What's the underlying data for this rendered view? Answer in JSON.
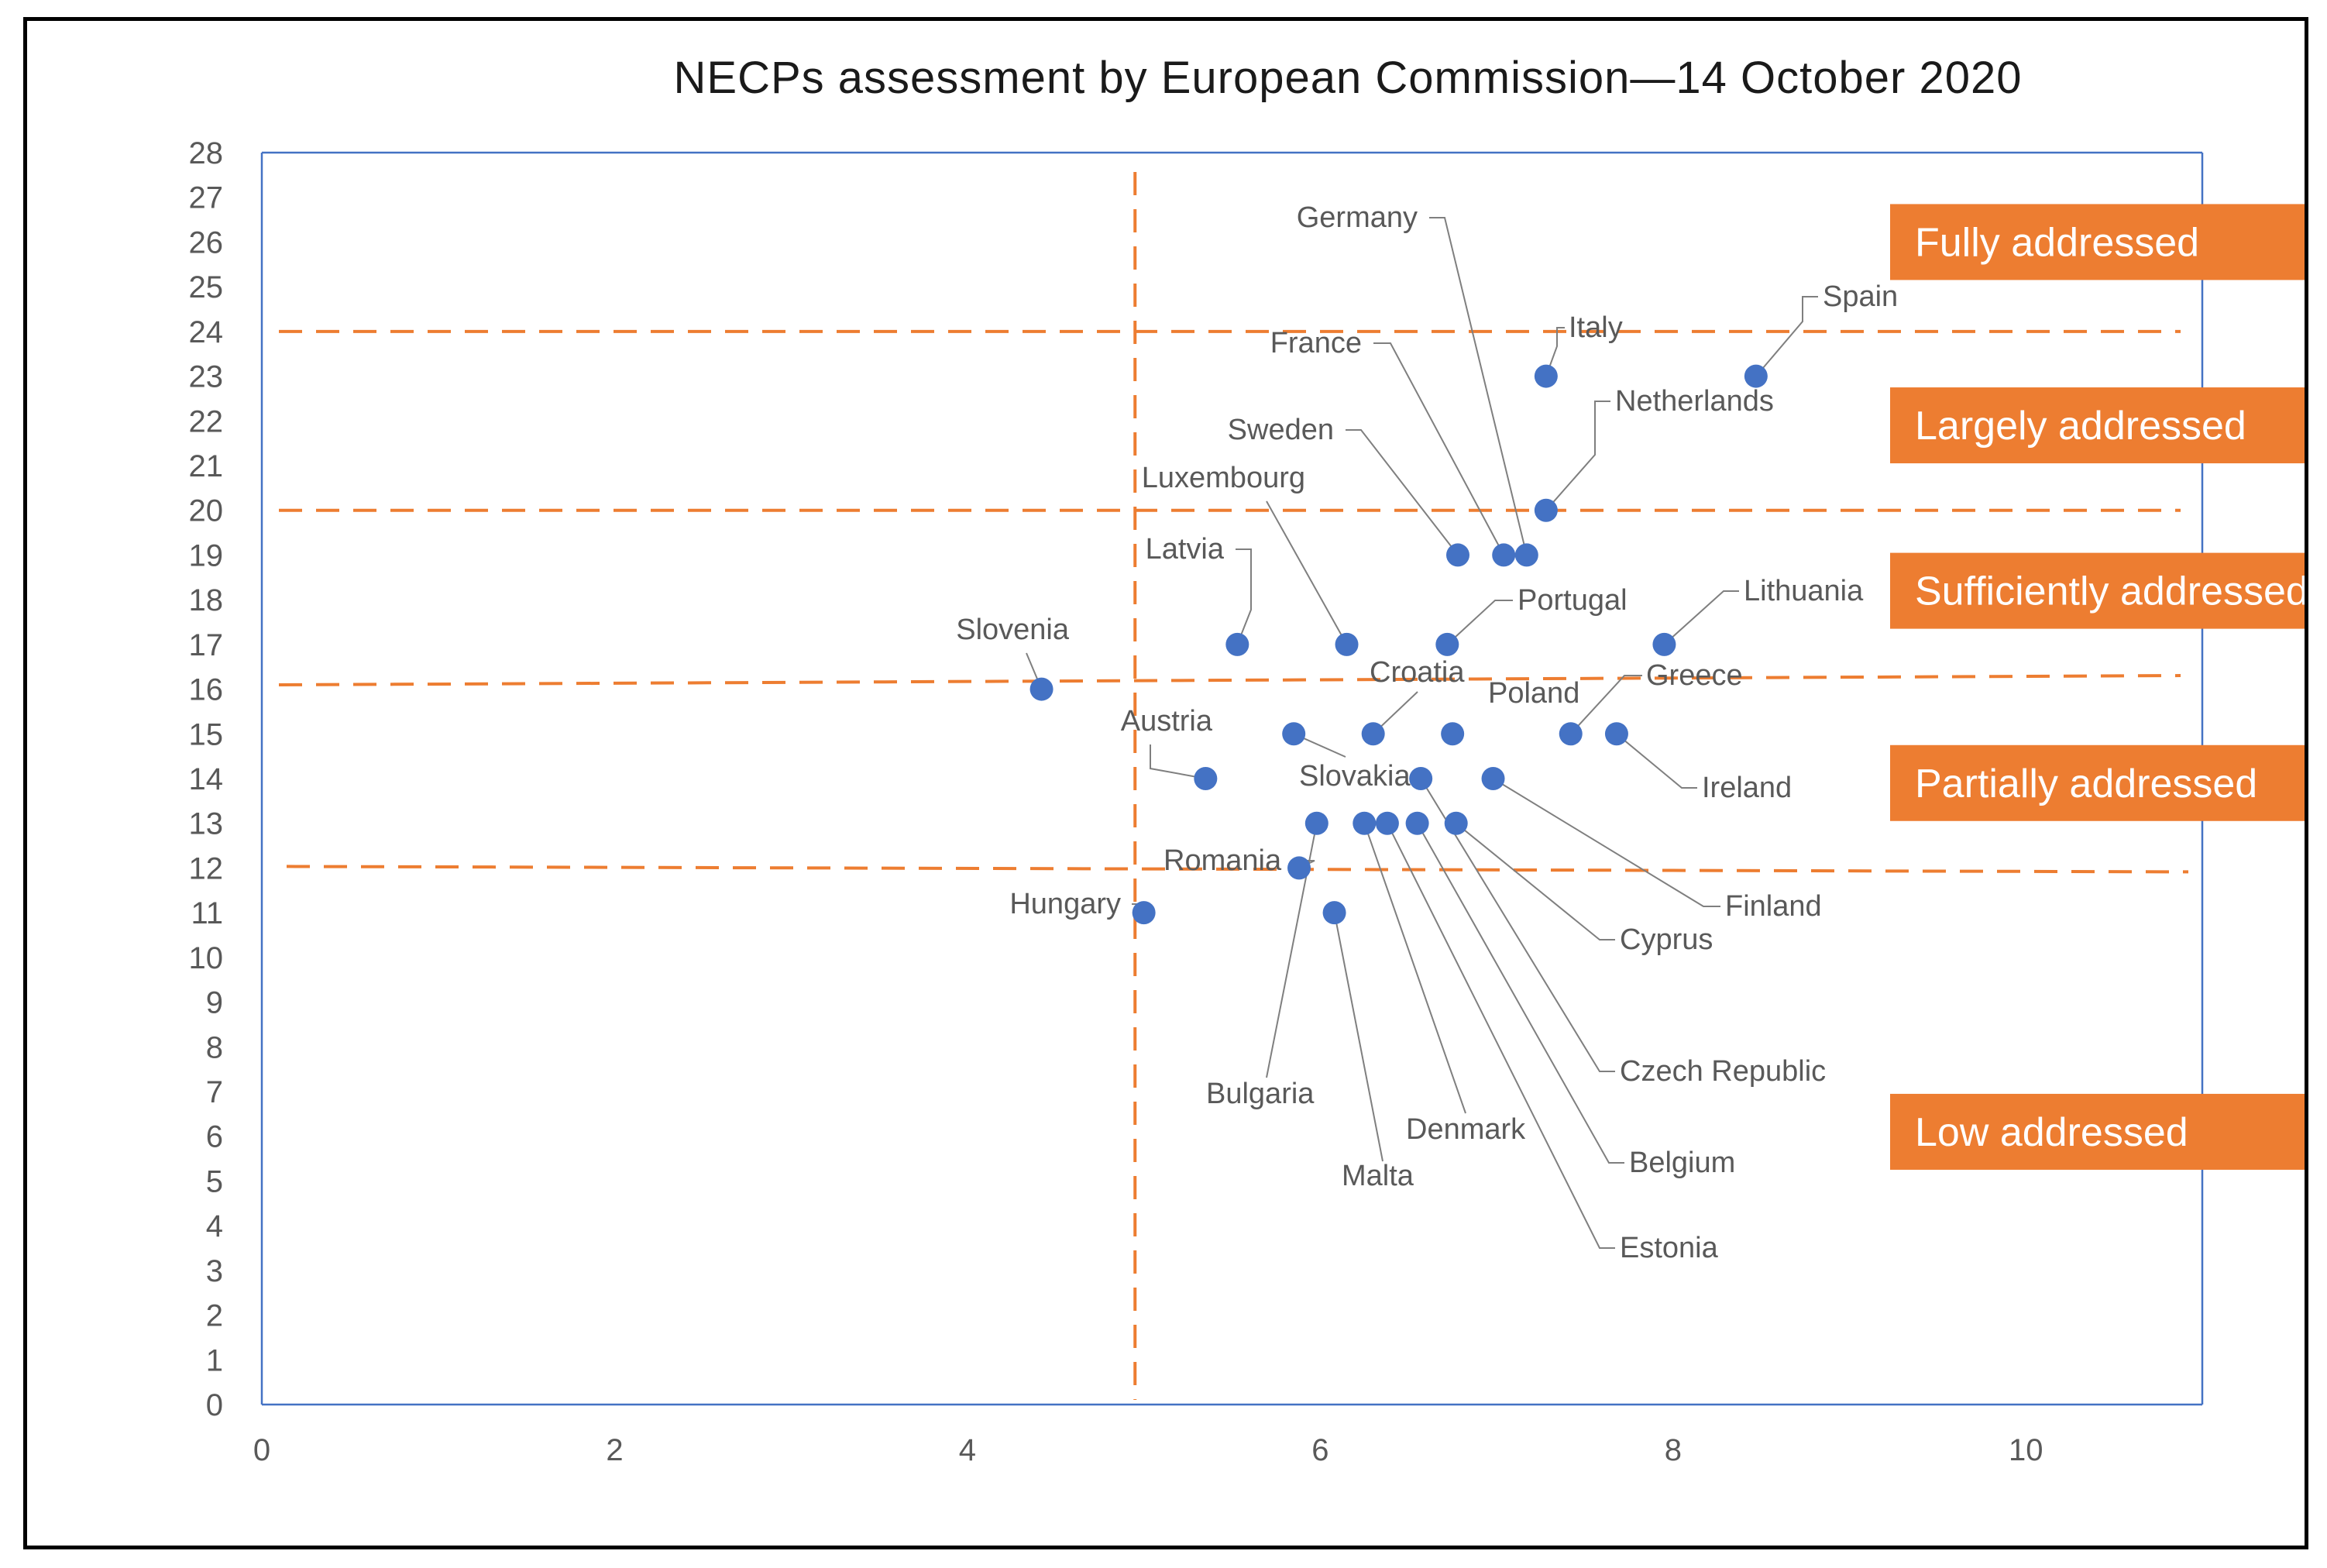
{
  "chart_data": {
    "type": "scatter",
    "title": "NECPs assessment by European Commission—14 October 2020",
    "xlabel": "",
    "ylabel": "",
    "xlim": [
      0,
      11
    ],
    "ylim": [
      0,
      28
    ],
    "x_ticks": [
      0,
      2,
      4,
      6,
      8,
      10
    ],
    "y_ticks": [
      0,
      1,
      2,
      3,
      4,
      5,
      6,
      7,
      8,
      9,
      10,
      11,
      12,
      13,
      14,
      15,
      16,
      17,
      18,
      19,
      20,
      21,
      22,
      23,
      24,
      25,
      26,
      27,
      28
    ],
    "grid": false,
    "threshold_lines": {
      "vertical_x": 4.95,
      "horizontal_y": [
        24,
        20,
        16.2,
        12
      ]
    },
    "categories": [
      {
        "label": "Fully addressed",
        "y_center": 26
      },
      {
        "label": "Largely addressed",
        "y_center": 21.9
      },
      {
        "label": "Sufficiently addressed",
        "y_center": 18.2
      },
      {
        "label": "Partially addressed",
        "y_center": 13.9
      },
      {
        "label": "Low addressed",
        "y_center": 6.1
      }
    ],
    "points": [
      {
        "label": "Germany",
        "x": 7.17,
        "y": 19
      },
      {
        "label": "Italy",
        "x": 7.28,
        "y": 23
      },
      {
        "label": "Spain",
        "x": 8.47,
        "y": 23
      },
      {
        "label": "France",
        "x": 7.04,
        "y": 19
      },
      {
        "label": "Netherlands",
        "x": 7.28,
        "y": 20
      },
      {
        "label": "Sweden",
        "x": 6.78,
        "y": 19
      },
      {
        "label": "Luxembourg",
        "x": 6.15,
        "y": 17
      },
      {
        "label": "Latvia",
        "x": 5.53,
        "y": 17
      },
      {
        "label": "Portugal",
        "x": 6.72,
        "y": 17
      },
      {
        "label": "Lithuania",
        "x": 7.95,
        "y": 17
      },
      {
        "label": "Slovenia",
        "x": 4.42,
        "y": 16
      },
      {
        "label": "Croatia",
        "x": 6.3,
        "y": 15
      },
      {
        "label": "Poland",
        "x": 6.75,
        "y": 15
      },
      {
        "label": "Greece",
        "x": 7.42,
        "y": 15
      },
      {
        "label": "Ireland",
        "x": 7.68,
        "y": 15
      },
      {
        "label": "Austria",
        "x": 5.35,
        "y": 14
      },
      {
        "label": "Slovakia",
        "x": 5.85,
        "y": 15
      },
      {
        "label": "Finland",
        "x": 6.98,
        "y": 14
      },
      {
        "label": "Cyprus",
        "x": 6.77,
        "y": 13
      },
      {
        "label": "Czech Republic",
        "x": 6.57,
        "y": 14
      },
      {
        "label": "Belgium",
        "x": 6.55,
        "y": 13
      },
      {
        "label": "Estonia",
        "x": 6.38,
        "y": 13
      },
      {
        "label": "Denmark",
        "x": 6.25,
        "y": 13
      },
      {
        "label": "Bulgaria",
        "x": 5.98,
        "y": 13
      },
      {
        "label": "Romania",
        "x": 5.88,
        "y": 12
      },
      {
        "label": "Malta",
        "x": 6.08,
        "y": 11
      },
      {
        "label": "Hungary",
        "x": 5.0,
        "y": 11
      }
    ]
  },
  "colors": {
    "point": "#4472C4",
    "threshold": "#ED7D31",
    "axis": "#4472C4",
    "category_box": "#ED7D31",
    "leader": "#7F7F7F"
  }
}
